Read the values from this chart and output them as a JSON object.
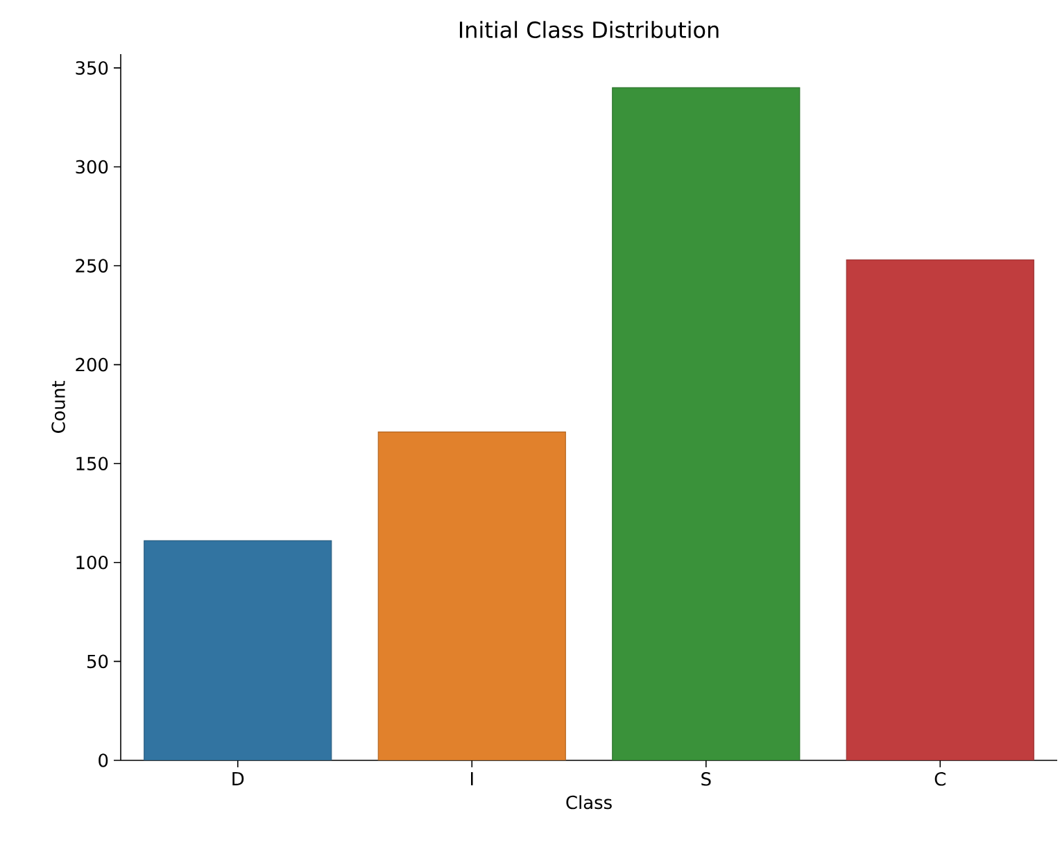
{
  "chart_data": {
    "type": "bar",
    "title": "Initial Class Distribution",
    "xlabel": "Class",
    "ylabel": "Count",
    "categories": [
      "D",
      "I",
      "S",
      "C"
    ],
    "values": [
      111,
      166,
      340,
      253
    ],
    "colors": [
      "#3274a1",
      "#e1812c",
      "#3a923a",
      "#c03d3e"
    ],
    "ylim": [
      0,
      357
    ],
    "yticks": [
      0,
      50,
      100,
      150,
      200,
      250,
      300,
      350
    ],
    "grid": false
  }
}
